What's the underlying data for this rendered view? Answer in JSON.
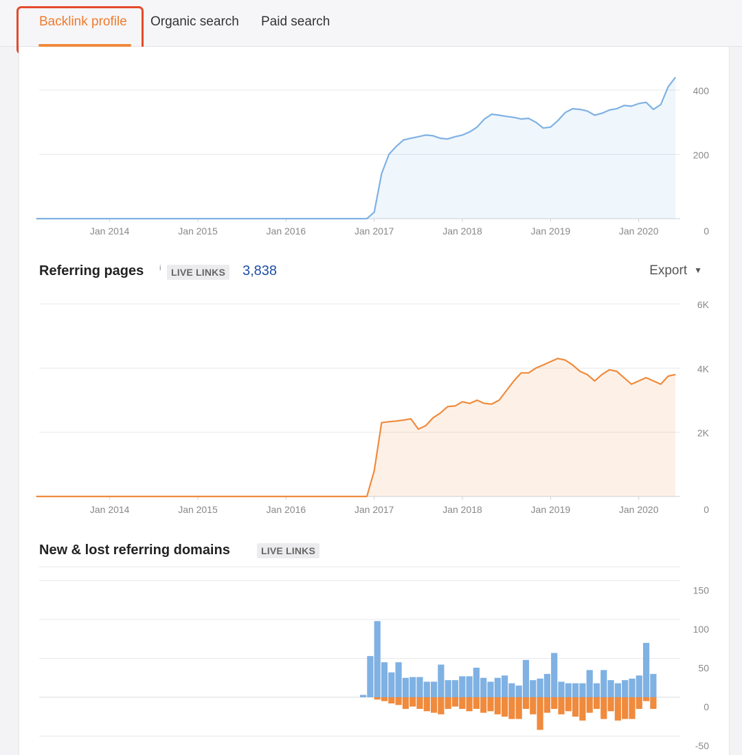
{
  "tabs": [
    {
      "label": "Backlink profile",
      "active": true
    },
    {
      "label": "Organic search",
      "active": false
    },
    {
      "label": "Paid search",
      "active": false
    }
  ],
  "colors": {
    "accent": "#f07b2b",
    "blue_series": "#7fb1e3",
    "orange_series": "#f08a3c",
    "count_link": "#1f4ea3",
    "highlight_box": "#e34a2a"
  },
  "sections": {
    "referring_pages": {
      "title": "Referring pages",
      "info_mark": "i",
      "badge": "LIVE LINKS",
      "count": "3,838",
      "export_label": "Export",
      "export_icon": "caret-down-icon"
    },
    "new_lost": {
      "title": "New & lost referring domains",
      "badge": "LIVE LINKS"
    }
  },
  "chart_data": [
    {
      "type": "area",
      "xlabel": "",
      "ylabel": "",
      "x_ticks": [
        "Jan 2014",
        "Jan 2015",
        "Jan 2016",
        "Jan 2017",
        "Jan 2018",
        "Jan 2019",
        "Jan 2020"
      ],
      "y_ticks": [
        "0",
        "200",
        "400"
      ],
      "ylim": [
        0,
        400
      ],
      "grid": true,
      "series": [
        {
          "color": "#7fb1e3",
          "x": [
            "2013-03",
            "2016-12",
            "2017-01",
            "2017-02",
            "2017-03",
            "2017-04",
            "2017-05",
            "2017-06",
            "2017-07",
            "2017-08",
            "2017-09",
            "2017-10",
            "2017-11",
            "2017-12",
            "2018-01",
            "2018-02",
            "2018-03",
            "2018-04",
            "2018-05",
            "2018-06",
            "2018-07",
            "2018-08",
            "2018-09",
            "2018-10",
            "2018-11",
            "2018-12",
            "2019-01",
            "2019-02",
            "2019-03",
            "2019-04",
            "2019-05",
            "2019-06",
            "2019-07",
            "2019-08",
            "2019-09",
            "2019-10",
            "2019-11",
            "2019-12",
            "2020-01",
            "2020-02",
            "2020-03",
            "2020-04",
            "2020-05",
            "2020-06"
          ],
          "values": [
            0,
            0,
            20,
            140,
            200,
            225,
            245,
            250,
            255,
            260,
            258,
            250,
            248,
            255,
            260,
            270,
            285,
            310,
            325,
            322,
            318,
            315,
            310,
            312,
            300,
            282,
            285,
            305,
            330,
            342,
            340,
            335,
            322,
            328,
            338,
            342,
            352,
            350,
            358,
            362,
            340,
            355,
            410,
            440
          ]
        }
      ]
    },
    {
      "type": "area",
      "xlabel": "",
      "ylabel": "",
      "x_ticks": [
        "Jan 2014",
        "Jan 2015",
        "Jan 2016",
        "Jan 2017",
        "Jan 2018",
        "Jan 2019",
        "Jan 2020"
      ],
      "y_ticks": [
        "0",
        "2K",
        "4K",
        "6K"
      ],
      "ylim": [
        0,
        6000
      ],
      "grid": true,
      "series": [
        {
          "color": "#f08a3c",
          "x": [
            "2013-03",
            "2016-12",
            "2017-01",
            "2017-02",
            "2017-03",
            "2017-04",
            "2017-05",
            "2017-06",
            "2017-07",
            "2017-08",
            "2017-09",
            "2017-10",
            "2017-11",
            "2017-12",
            "2018-01",
            "2018-02",
            "2018-03",
            "2018-04",
            "2018-05",
            "2018-06",
            "2018-07",
            "2018-08",
            "2018-09",
            "2018-10",
            "2018-11",
            "2018-12",
            "2019-01",
            "2019-02",
            "2019-03",
            "2019-04",
            "2019-05",
            "2019-06",
            "2019-07",
            "2019-08",
            "2019-09",
            "2019-10",
            "2019-11",
            "2019-12",
            "2020-01",
            "2020-02",
            "2020-03",
            "2020-04",
            "2020-05",
            "2020-06"
          ],
          "values": [
            0,
            0,
            800,
            2300,
            2330,
            2350,
            2380,
            2420,
            2100,
            2200,
            2450,
            2600,
            2800,
            2820,
            2950,
            2900,
            3000,
            2900,
            2880,
            3000,
            3300,
            3600,
            3850,
            3850,
            4000,
            4100,
            4200,
            4300,
            4250,
            4100,
            3900,
            3800,
            3600,
            3800,
            3950,
            3900,
            3700,
            3500,
            3600,
            3700,
            3600,
            3500,
            3750,
            3800
          ]
        }
      ]
    },
    {
      "type": "bar",
      "xlabel": "",
      "ylabel": "",
      "y_ticks": [
        "-50",
        "0",
        "50",
        "100",
        "150"
      ],
      "ylim": [
        -50,
        150
      ],
      "grid": true,
      "series": [
        {
          "color": "#7fb1e3",
          "values": [
            3,
            53,
            98,
            45,
            32,
            45,
            25,
            26,
            26,
            20,
            20,
            42,
            22,
            22,
            27,
            27,
            38,
            25,
            20,
            25,
            28,
            18,
            15,
            48,
            22,
            24,
            30,
            57,
            20,
            18,
            18,
            18,
            35,
            18,
            35,
            22,
            18,
            22,
            24,
            28,
            70,
            30
          ]
        },
        {
          "color": "#f08a3c",
          "values": [
            0,
            0,
            -3,
            -5,
            -8,
            -10,
            -15,
            -12,
            -15,
            -18,
            -20,
            -22,
            -15,
            -12,
            -15,
            -18,
            -15,
            -20,
            -18,
            -22,
            -25,
            -28,
            -28,
            -15,
            -22,
            -42,
            -20,
            -15,
            -22,
            -18,
            -25,
            -30,
            -20,
            -15,
            -28,
            -18,
            -30,
            -28,
            -28,
            -15,
            -5,
            -15
          ]
        }
      ]
    }
  ]
}
